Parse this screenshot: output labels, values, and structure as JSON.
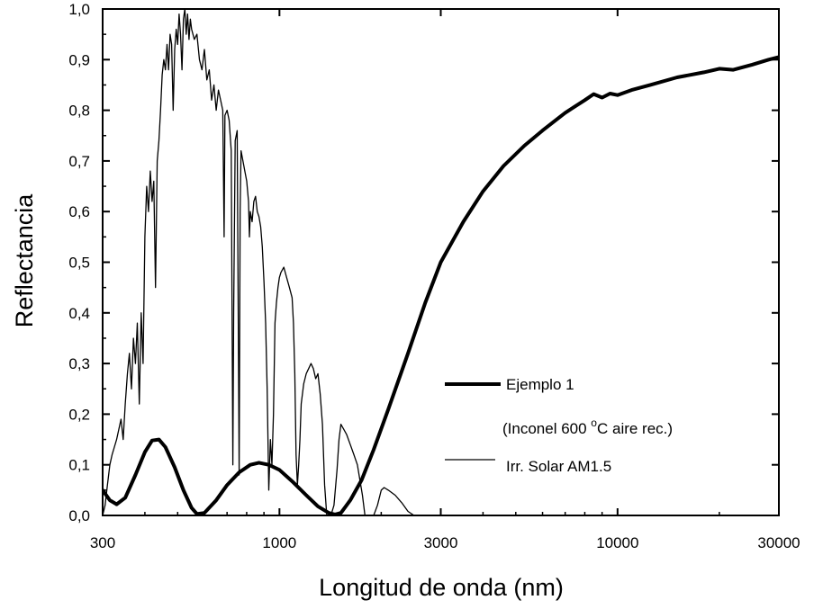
{
  "chart_data": {
    "type": "line",
    "title": "",
    "xlabel": "Longitud de onda (nm)",
    "ylabel": "Reflectancia",
    "xscale": "log",
    "xlim": [
      300,
      30000
    ],
    "ylim": [
      0,
      1.0
    ],
    "grid": false,
    "legend_position": "right-middle",
    "x_ticks": [
      {
        "value": 300,
        "label": "300"
      },
      {
        "value": 1000,
        "label": "1000"
      },
      {
        "value": 3000,
        "label": "3000"
      },
      {
        "value": 10000,
        "label": "10000"
      },
      {
        "value": 30000,
        "label": "30000"
      }
    ],
    "y_ticks": [
      {
        "value": 0.0,
        "label": "0,0"
      },
      {
        "value": 0.1,
        "label": "0,1"
      },
      {
        "value": 0.2,
        "label": "0,2"
      },
      {
        "value": 0.3,
        "label": "0,3"
      },
      {
        "value": 0.4,
        "label": "0,4"
      },
      {
        "value": 0.5,
        "label": "0,5"
      },
      {
        "value": 0.6,
        "label": "0,6"
      },
      {
        "value": 0.7,
        "label": "0,7"
      },
      {
        "value": 0.8,
        "label": "0,8"
      },
      {
        "value": 0.9,
        "label": "0,9"
      },
      {
        "value": 1.0,
        "label": "1,0"
      }
    ],
    "legend": {
      "line1": "Ejemplo 1",
      "line2_pre": "(Inconel 600 ",
      "line2_sup": "o",
      "line2_post": "C aire rec.)",
      "line3": "Irr. Solar AM1.5"
    },
    "series": [
      {
        "name": "Ejemplo 1",
        "style": "thick",
        "color": "#000000",
        "points": [
          [
            300,
            0.05
          ],
          [
            315,
            0.03
          ],
          [
            330,
            0.022
          ],
          [
            350,
            0.035
          ],
          [
            375,
            0.08
          ],
          [
            400,
            0.125
          ],
          [
            420,
            0.148
          ],
          [
            440,
            0.15
          ],
          [
            460,
            0.135
          ],
          [
            490,
            0.095
          ],
          [
            520,
            0.05
          ],
          [
            550,
            0.015
          ],
          [
            570,
            0.003
          ],
          [
            600,
            0.005
          ],
          [
            650,
            0.03
          ],
          [
            700,
            0.06
          ],
          [
            760,
            0.085
          ],
          [
            820,
            0.1
          ],
          [
            870,
            0.104
          ],
          [
            930,
            0.1
          ],
          [
            1000,
            0.09
          ],
          [
            1100,
            0.065
          ],
          [
            1200,
            0.04
          ],
          [
            1300,
            0.018
          ],
          [
            1400,
            0.005
          ],
          [
            1460,
            0.002
          ],
          [
            1520,
            0.005
          ],
          [
            1620,
            0.03
          ],
          [
            1750,
            0.07
          ],
          [
            1900,
            0.13
          ],
          [
            2100,
            0.21
          ],
          [
            2400,
            0.32
          ],
          [
            2700,
            0.42
          ],
          [
            3000,
            0.5
          ],
          [
            3500,
            0.58
          ],
          [
            4000,
            0.64
          ],
          [
            4600,
            0.69
          ],
          [
            5300,
            0.73
          ],
          [
            6000,
            0.76
          ],
          [
            7000,
            0.795
          ],
          [
            8000,
            0.82
          ],
          [
            8500,
            0.832
          ],
          [
            9000,
            0.825
          ],
          [
            9500,
            0.833
          ],
          [
            10000,
            0.83
          ],
          [
            11000,
            0.84
          ],
          [
            12500,
            0.85
          ],
          [
            15000,
            0.865
          ],
          [
            18000,
            0.875
          ],
          [
            20000,
            0.882
          ],
          [
            22000,
            0.88
          ],
          [
            25000,
            0.89
          ],
          [
            28000,
            0.9
          ],
          [
            30000,
            0.905
          ]
        ]
      },
      {
        "name": "Irr. Solar AM1.5",
        "style": "thin",
        "color": "#000000",
        "points": [
          [
            300,
            0.0
          ],
          [
            305,
            0.02
          ],
          [
            310,
            0.06
          ],
          [
            315,
            0.1
          ],
          [
            320,
            0.12
          ],
          [
            330,
            0.15
          ],
          [
            340,
            0.19
          ],
          [
            345,
            0.15
          ],
          [
            350,
            0.22
          ],
          [
            355,
            0.28
          ],
          [
            360,
            0.32
          ],
          [
            365,
            0.25
          ],
          [
            370,
            0.35
          ],
          [
            375,
            0.3
          ],
          [
            380,
            0.38
          ],
          [
            385,
            0.22
          ],
          [
            390,
            0.4
          ],
          [
            395,
            0.3
          ],
          [
            400,
            0.55
          ],
          [
            405,
            0.65
          ],
          [
            410,
            0.6
          ],
          [
            415,
            0.68
          ],
          [
            420,
            0.62
          ],
          [
            425,
            0.66
          ],
          [
            430,
            0.45
          ],
          [
            435,
            0.7
          ],
          [
            440,
            0.74
          ],
          [
            445,
            0.8
          ],
          [
            450,
            0.87
          ],
          [
            455,
            0.9
          ],
          [
            460,
            0.88
          ],
          [
            465,
            0.93
          ],
          [
            470,
            0.88
          ],
          [
            475,
            0.95
          ],
          [
            480,
            0.93
          ],
          [
            485,
            0.8
          ],
          [
            490,
            0.92
          ],
          [
            495,
            0.96
          ],
          [
            500,
            0.93
          ],
          [
            505,
            0.99
          ],
          [
            510,
            0.95
          ],
          [
            515,
            0.88
          ],
          [
            520,
            0.98
          ],
          [
            525,
            1.0
          ],
          [
            530,
            0.95
          ],
          [
            535,
            0.99
          ],
          [
            540,
            0.94
          ],
          [
            545,
            0.98
          ],
          [
            550,
            0.96
          ],
          [
            560,
            0.94
          ],
          [
            570,
            0.95
          ],
          [
            580,
            0.9
          ],
          [
            590,
            0.88
          ],
          [
            600,
            0.92
          ],
          [
            610,
            0.86
          ],
          [
            620,
            0.88
          ],
          [
            630,
            0.82
          ],
          [
            640,
            0.85
          ],
          [
            650,
            0.8
          ],
          [
            660,
            0.84
          ],
          [
            670,
            0.82
          ],
          [
            680,
            0.8
          ],
          [
            686,
            0.55
          ],
          [
            690,
            0.79
          ],
          [
            700,
            0.8
          ],
          [
            710,
            0.78
          ],
          [
            720,
            0.72
          ],
          [
            728,
            0.1
          ],
          [
            732,
            0.4
          ],
          [
            740,
            0.74
          ],
          [
            750,
            0.76
          ],
          [
            760,
            0.08
          ],
          [
            765,
            0.6
          ],
          [
            770,
            0.72
          ],
          [
            780,
            0.7
          ],
          [
            790,
            0.68
          ],
          [
            800,
            0.66
          ],
          [
            810,
            0.62
          ],
          [
            815,
            0.55
          ],
          [
            820,
            0.6
          ],
          [
            830,
            0.58
          ],
          [
            840,
            0.62
          ],
          [
            850,
            0.63
          ],
          [
            860,
            0.6
          ],
          [
            870,
            0.59
          ],
          [
            880,
            0.57
          ],
          [
            890,
            0.53
          ],
          [
            900,
            0.46
          ],
          [
            910,
            0.38
          ],
          [
            920,
            0.25
          ],
          [
            930,
            0.05
          ],
          [
            940,
            0.15
          ],
          [
            950,
            0.1
          ],
          [
            960,
            0.2
          ],
          [
            970,
            0.38
          ],
          [
            980,
            0.42
          ],
          [
            990,
            0.45
          ],
          [
            1000,
            0.47
          ],
          [
            1010,
            0.48
          ],
          [
            1030,
            0.49
          ],
          [
            1050,
            0.47
          ],
          [
            1070,
            0.45
          ],
          [
            1090,
            0.43
          ],
          [
            1100,
            0.38
          ],
          [
            1110,
            0.28
          ],
          [
            1120,
            0.12
          ],
          [
            1130,
            0.06
          ],
          [
            1140,
            0.1
          ],
          [
            1150,
            0.15
          ],
          [
            1160,
            0.22
          ],
          [
            1180,
            0.26
          ],
          [
            1200,
            0.28
          ],
          [
            1220,
            0.29
          ],
          [
            1240,
            0.3
          ],
          [
            1260,
            0.29
          ],
          [
            1280,
            0.27
          ],
          [
            1300,
            0.28
          ],
          [
            1320,
            0.24
          ],
          [
            1340,
            0.18
          ],
          [
            1360,
            0.06
          ],
          [
            1380,
            0.0
          ],
          [
            1420,
            0.0
          ],
          [
            1450,
            0.02
          ],
          [
            1480,
            0.09
          ],
          [
            1500,
            0.15
          ],
          [
            1520,
            0.18
          ],
          [
            1550,
            0.17
          ],
          [
            1580,
            0.16
          ],
          [
            1620,
            0.14
          ],
          [
            1660,
            0.12
          ],
          [
            1700,
            0.1
          ],
          [
            1730,
            0.07
          ],
          [
            1760,
            0.04
          ],
          [
            1790,
            0.0
          ],
          [
            1860,
            0.0
          ],
          [
            1900,
            0.0
          ],
          [
            1950,
            0.02
          ],
          [
            2000,
            0.05
          ],
          [
            2040,
            0.055
          ],
          [
            2100,
            0.05
          ],
          [
            2200,
            0.04
          ],
          [
            2300,
            0.025
          ],
          [
            2400,
            0.008
          ],
          [
            2500,
            0.0
          ]
        ]
      }
    ]
  }
}
